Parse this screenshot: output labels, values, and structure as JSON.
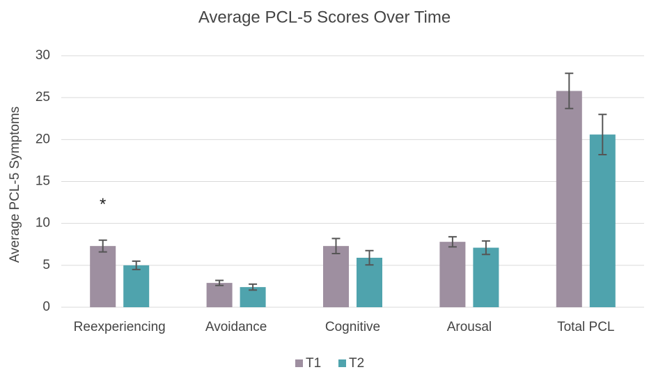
{
  "chart_data": {
    "type": "bar",
    "title": "Average PCL-5 Scores Over Time",
    "y_label": "Average PCL-5 Symptoms",
    "annotation": "*",
    "categories": [
      "Reexperiencing",
      "Avoidance",
      "Cognitive",
      "Arousal",
      "Total PCL"
    ],
    "series": [
      {
        "name": "T1",
        "color": "#9e8fa0",
        "values": [
          7.3,
          2.9,
          7.3,
          7.8,
          25.8
        ],
        "errors": [
          0.7,
          0.3,
          0.9,
          0.6,
          2.1
        ]
      },
      {
        "name": "T2",
        "color": "#4fa3ad",
        "values": [
          5.0,
          2.4,
          5.9,
          7.1,
          20.6
        ],
        "errors": [
          0.5,
          0.35,
          0.85,
          0.8,
          2.4
        ]
      }
    ],
    "ylim": [
      0,
      30
    ],
    "yticks": [
      0,
      5,
      10,
      15,
      20,
      25,
      30
    ],
    "grid": true,
    "legend": "bottom"
  }
}
